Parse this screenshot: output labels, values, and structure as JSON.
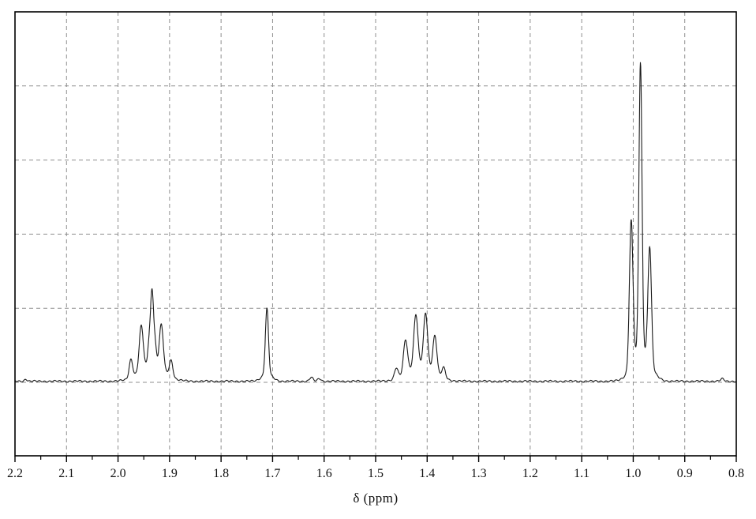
{
  "chart_data": {
    "type": "line",
    "subtype": "1H NMR spectrum trace",
    "title": "",
    "xlabel": "δ (ppm)",
    "ylabel": "",
    "x_axis": {
      "min": 0.8,
      "max": 2.2,
      "reversed": true,
      "major_tick_step": 0.1,
      "minor_tick_step": 0.05,
      "major_ticks": [
        2.2,
        2.1,
        2.0,
        1.9,
        1.8,
        1.7,
        1.6,
        1.5,
        1.4,
        1.3,
        1.2,
        1.1,
        1.0,
        0.9,
        0.8
      ],
      "tick_labels": [
        "2.2",
        "2.1",
        "2.0",
        "1.9",
        "1.8",
        "1.7",
        "1.6",
        "1.5",
        "1.4",
        "1.3",
        "1.2",
        "1.1",
        "1.0",
        "0.9",
        "0.8"
      ]
    },
    "y_axis": {
      "labels_visible": false,
      "gridline_rows": 6,
      "height_unit_note": "peak heights in gridline-row units (1 row of the dashed grid = 1.0); trace baseline sits on the second gridline from the bottom"
    },
    "grid": {
      "style": "dashed",
      "vertical_at_each_major_tick": true,
      "horizontal_rows": 5
    },
    "legend": {
      "visible": false
    },
    "peak_groups": [
      {
        "center_ppm": 1.93,
        "range_ppm": "1.98–1.89",
        "pattern": "multiplet",
        "max_height_rows": 1.24
      },
      {
        "center_ppm": 1.71,
        "range_ppm": "1.71",
        "pattern": "singlet",
        "max_height_rows": 0.98
      },
      {
        "center_ppm": 1.41,
        "range_ppm": "1.46–1.37",
        "pattern": "multiplet (sextet-like)",
        "max_height_rows": 0.98
      },
      {
        "center_ppm": 0.99,
        "range_ppm": "1.01–0.96",
        "pattern": "triplet",
        "max_height_rows": 4.31
      }
    ],
    "peaks_ppm_height_hwhm": [
      [
        2.179,
        0.03,
        0.003
      ],
      [
        1.975,
        0.25,
        0.004
      ],
      [
        1.955,
        0.6,
        0.0045
      ],
      [
        1.94,
        0.28,
        0.003
      ],
      [
        1.934,
        1.0,
        0.0035
      ],
      [
        1.928,
        0.26,
        0.003
      ],
      [
        1.916,
        0.6,
        0.0045
      ],
      [
        1.897,
        0.22,
        0.004
      ],
      [
        1.934,
        0.22,
        0.028
      ],
      [
        1.711,
        0.88,
        0.0035
      ],
      [
        1.711,
        0.1,
        0.012
      ],
      [
        1.625,
        0.05,
        0.004
      ],
      [
        1.609,
        0.035,
        0.004
      ],
      [
        1.46,
        0.14,
        0.004
      ],
      [
        1.442,
        0.45,
        0.0045
      ],
      [
        1.422,
        0.7,
        0.0045
      ],
      [
        1.403,
        0.72,
        0.0045
      ],
      [
        1.385,
        0.5,
        0.0045
      ],
      [
        1.368,
        0.14,
        0.004
      ],
      [
        1.413,
        0.22,
        0.03
      ],
      [
        1.004,
        1.95,
        0.004
      ],
      [
        0.986,
        3.88,
        0.0035
      ],
      [
        0.968,
        1.57,
        0.004
      ],
      [
        0.985,
        0.42,
        0.02
      ],
      [
        0.827,
        0.03,
        0.004
      ]
    ],
    "colors": {
      "trace": "#1a1a1a",
      "grid": "#8f8f8f",
      "axis": "#000000",
      "background": "#ffffff",
      "text": "#111111"
    }
  }
}
